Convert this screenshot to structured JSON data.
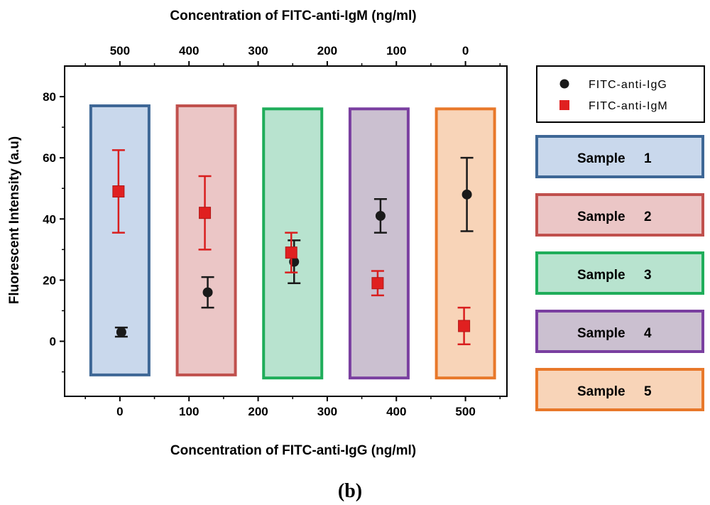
{
  "chart_data": {
    "type": "scatter",
    "title": "",
    "xlabel": "Concentration of FITC-anti-IgG (ng/ml)",
    "x2label": "Concentration of FITC-anti-IgM (ng/ml)",
    "ylabel": "Fluorescent Intensity (a.u)",
    "xlim": [
      -80,
      560
    ],
    "ylim": [
      -18,
      90
    ],
    "x_ticks": [
      0,
      100,
      200,
      300,
      400,
      500
    ],
    "x2_ticks": [
      500,
      400,
      300,
      200,
      100,
      0
    ],
    "y_ticks": [
      0,
      20,
      40,
      60,
      80
    ],
    "series": [
      {
        "name": "FITC-anti-IgG",
        "color": "#1a1a1a",
        "marker": "circle",
        "points": [
          {
            "x": 0,
            "y": 3,
            "err": 1.5
          },
          {
            "x": 125,
            "y": 16,
            "err": 5
          },
          {
            "x": 250,
            "y": 26,
            "err": 7
          },
          {
            "x": 375,
            "y": 41,
            "err": 5.5
          },
          {
            "x": 500,
            "y": 48,
            "err": 12
          }
        ]
      },
      {
        "name": "FITC-anti-IgM",
        "color": "#e02020",
        "marker": "square",
        "points": [
          {
            "x": 0,
            "y": 49,
            "err": 13.5
          },
          {
            "x": 125,
            "y": 42,
            "err": 12
          },
          {
            "x": 250,
            "y": 29,
            "err": 6.5
          },
          {
            "x": 375,
            "y": 19,
            "err": 4
          },
          {
            "x": 500,
            "y": 5,
            "err": 6
          }
        ]
      }
    ],
    "samples": [
      {
        "label": "Sample",
        "num": "1",
        "x": 0,
        "y_top": 77,
        "y_bottom": -11,
        "fill": "#c9d8ec",
        "stroke": "#3e6796"
      },
      {
        "label": "Sample",
        "num": "2",
        "x": 125,
        "y_top": 77,
        "y_bottom": -11,
        "fill": "#ebc6c6",
        "stroke": "#c0504d"
      },
      {
        "label": "Sample",
        "num": "3",
        "x": 250,
        "y_top": 76,
        "y_bottom": -12,
        "fill": "#b8e3cf",
        "stroke": "#1fad5a"
      },
      {
        "label": "Sample",
        "num": "4",
        "x": 375,
        "y_top": 76,
        "y_bottom": -12,
        "fill": "#cbc0d0",
        "stroke": "#7a3fa0"
      },
      {
        "label": "Sample",
        "num": "5",
        "x": 500,
        "y_top": 76,
        "y_bottom": -12,
        "fill": "#f8d4b8",
        "stroke": "#e8782a"
      }
    ],
    "legend": [
      {
        "name": "FITC-anti-IgG",
        "marker": "circle"
      },
      {
        "name": "FITC-anti-IgM",
        "marker": "square"
      }
    ]
  },
  "caption": "(b)"
}
